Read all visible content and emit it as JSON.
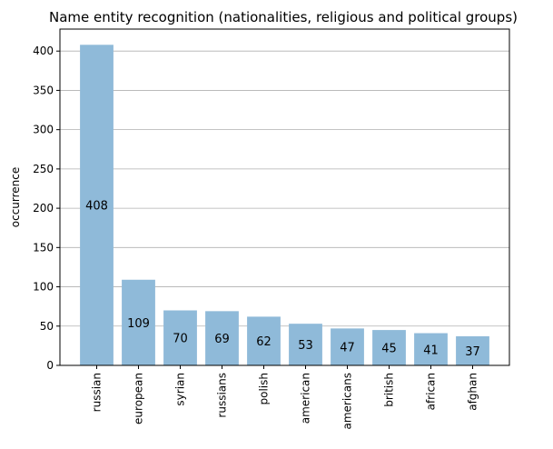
{
  "chart_data": {
    "type": "bar",
    "title": "Name entity recognition (nationalities, religious and political groups)",
    "xlabel": "",
    "ylabel": "occurrence",
    "categories": [
      "russian",
      "european",
      "syrian",
      "russians",
      "polish",
      "american",
      "americans",
      "british",
      "african",
      "afghan"
    ],
    "values": [
      408,
      109,
      70,
      69,
      62,
      53,
      47,
      45,
      41,
      37
    ],
    "data_labels": [
      "408",
      "109",
      "70",
      "69",
      "62",
      "53",
      "47",
      "45",
      "41",
      "37"
    ],
    "ylim": [
      0,
      428
    ],
    "yticks": [
      0,
      50,
      100,
      150,
      200,
      250,
      300,
      350,
      400
    ],
    "ytick_labels": [
      "0",
      "50",
      "100",
      "150",
      "200",
      "250",
      "300",
      "350",
      "400"
    ],
    "grid": "horizontal",
    "bar_color": "#8fbad9",
    "bar_alpha": 1
  }
}
